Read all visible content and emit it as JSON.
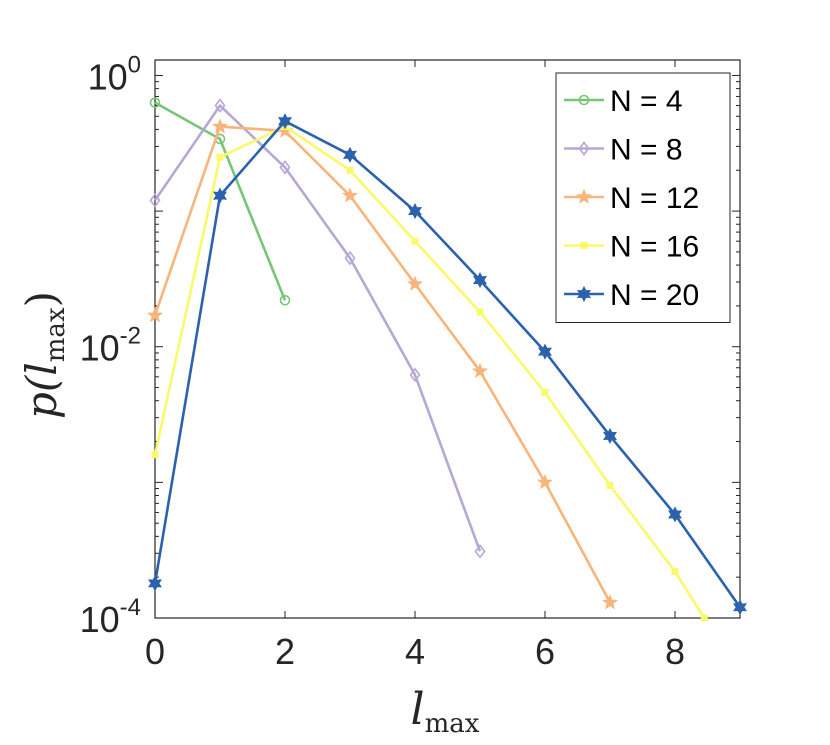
{
  "chart_data": {
    "type": "line",
    "xlabel_main": "l",
    "xlabel_sub": "max",
    "ylabel_prefix": "p(",
    "ylabel_main": "l",
    "ylabel_sub": "max",
    "ylabel_suffix": ")",
    "xlim": [
      0,
      9
    ],
    "ylim": [
      0.0001,
      1.3
    ],
    "yscale": "log",
    "xticks": [
      0,
      2,
      4,
      6,
      8
    ],
    "xtick_labels": [
      "0",
      "2",
      "4",
      "6",
      "8"
    ],
    "yticks": [
      {
        "value": 1,
        "base": "10",
        "exp": "0"
      },
      {
        "value": 0.01,
        "base": "10",
        "exp": "-2"
      },
      {
        "value": 0.0001,
        "base": "10",
        "exp": "-4"
      }
    ],
    "grid": false,
    "legend_position": "top-right",
    "series": [
      {
        "name": "N = 4",
        "color": "#77c676",
        "marker": "circle",
        "x": [
          0,
          1,
          2
        ],
        "y": [
          0.63,
          0.34,
          0.022
        ]
      },
      {
        "name": "N = 8",
        "color": "#b7a7d4",
        "marker": "diamond",
        "x": [
          0,
          1,
          2,
          3,
          4,
          5
        ],
        "y": [
          0.12,
          0.6,
          0.21,
          0.045,
          0.0062,
          0.00031
        ]
      },
      {
        "name": "N = 12",
        "color": "#f9b47a",
        "marker": "star",
        "x": [
          0,
          1,
          2,
          3,
          4,
          5,
          6,
          7
        ],
        "y": [
          0.017,
          0.42,
          0.39,
          0.13,
          0.029,
          0.0066,
          0.001,
          0.00013
        ]
      },
      {
        "name": "N = 16",
        "color": "#f9f96a",
        "marker": "square",
        "x": [
          0,
          1,
          2,
          3,
          4,
          5,
          6,
          7,
          8,
          8.45
        ],
        "y": [
          0.0016,
          0.25,
          0.42,
          0.2,
          0.06,
          0.018,
          0.0046,
          0.00095,
          0.00022,
          0.0001
        ]
      },
      {
        "name": "N = 20",
        "color": "#2c62ad",
        "marker": "hexagram",
        "x": [
          0,
          1,
          2,
          3,
          4,
          5,
          6,
          7,
          8,
          9
        ],
        "y": [
          0.00018,
          0.13,
          0.46,
          0.26,
          0.1,
          0.031,
          0.0092,
          0.0022,
          0.00058,
          0.00012
        ]
      }
    ]
  }
}
